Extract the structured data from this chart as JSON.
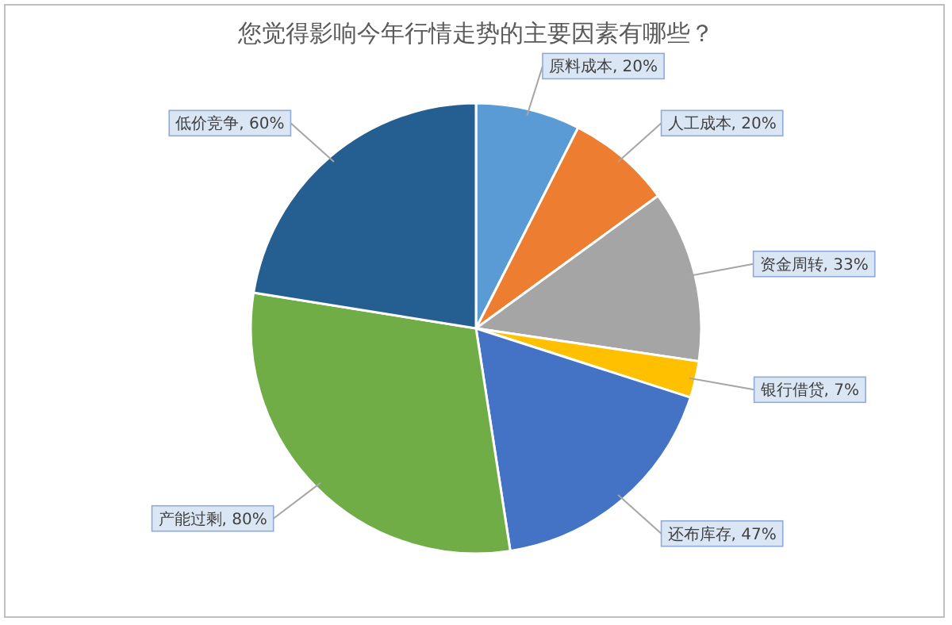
{
  "chart_data": {
    "type": "pie",
    "title": "您觉得影响今年行情走势的主要因素有哪些？",
    "categories": [
      "原料成本",
      "人工成本",
      "资金周转",
      "银行借贷",
      "还布库存",
      "产能过剩",
      "低价竞争"
    ],
    "values": [
      20,
      20,
      33,
      7,
      47,
      80,
      60
    ],
    "value_labels": [
      "20%",
      "20%",
      "33%",
      "7%",
      "47%",
      "80%",
      "60%"
    ],
    "colors": [
      "#5b9bd5",
      "#ed7d31",
      "#a5a5a5",
      "#ffc000",
      "#4472c4",
      "#70ad47",
      "#255e91"
    ]
  }
}
